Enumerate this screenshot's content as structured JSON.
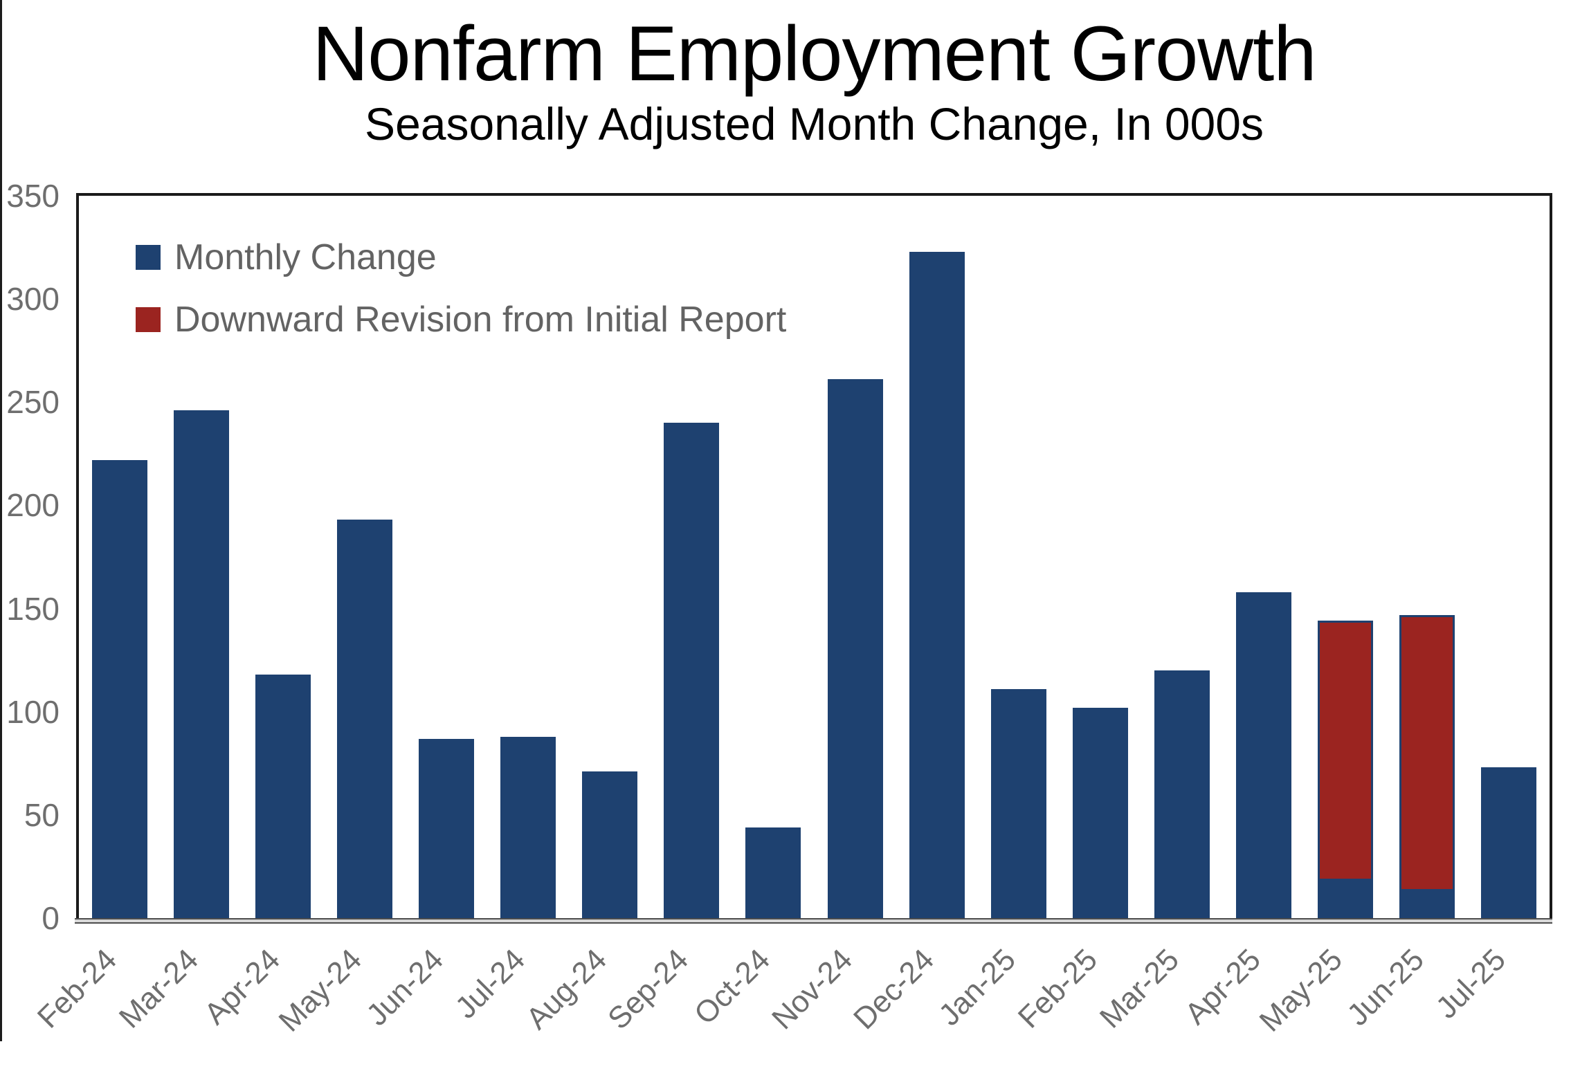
{
  "page": {
    "title": "Nonfarm Employment Growth",
    "subtitle": "Seasonally Adjusted Month Change, In 000s"
  },
  "legend": [
    {
      "label": "Monthly Change",
      "color": "#1e4170"
    },
    {
      "label": "Downward Revision from Initial Report",
      "color": "#9b2420"
    }
  ],
  "colors": {
    "bar_blue": "#1e4170",
    "bar_red": "#9b2420",
    "red_outline_blue": "#1e4170",
    "axis_text": "#6e6e6e",
    "legend_text": "#636363",
    "plot_border": "#1a1a1a",
    "axis_band_fill": "#d9d9d9",
    "axis_band_edge": "#4d4d4d"
  },
  "chart_data": {
    "type": "bar",
    "stacked": true,
    "title": "Nonfarm Employment Growth",
    "subtitle": "Seasonally Adjusted Month Change, In 000s",
    "xlabel": "",
    "ylabel": "",
    "ylim": [
      0,
      350
    ],
    "yticks": [
      0,
      50,
      100,
      150,
      200,
      250,
      300,
      350
    ],
    "grid": false,
    "legend_position": "top-left-inside",
    "categories": [
      "Feb-24",
      "Mar-24",
      "Apr-24",
      "May-24",
      "Jun-24",
      "Jul-24",
      "Aug-24",
      "Sep-24",
      "Oct-24",
      "Nov-24",
      "Dec-24",
      "Jan-25",
      "Feb-25",
      "Mar-25",
      "Apr-25",
      "May-25",
      "Jun-25",
      "Jul-25"
    ],
    "series": [
      {
        "name": "Monthly Change",
        "color": "#1e4170",
        "values": [
          222,
          246,
          118,
          193,
          87,
          88,
          71,
          240,
          44,
          261,
          323,
          111,
          102,
          120,
          158,
          19,
          14,
          73
        ]
      },
      {
        "name": "Downward Revision from Initial Report",
        "color": "#9b2420",
        "values": [
          0,
          0,
          0,
          0,
          0,
          0,
          0,
          0,
          0,
          0,
          0,
          0,
          0,
          0,
          0,
          125,
          133,
          0
        ]
      }
    ],
    "annotations": {
      "initial_report_values": {
        "May-25": 144,
        "Jun-25": 147
      },
      "revised_values": {
        "May-25": 19,
        "Jun-25": 14
      }
    }
  }
}
